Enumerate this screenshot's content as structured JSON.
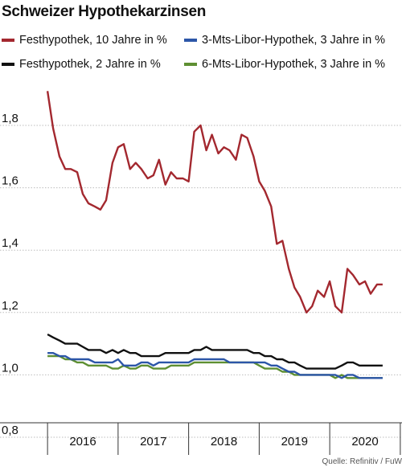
{
  "title": "Schweizer Hypothekarzinsen",
  "source": "Quelle: Refinitiv / FuW",
  "chart_data": {
    "type": "line",
    "title": "Schweizer Hypothekarzinsen",
    "xlabel": "",
    "ylabel": "",
    "ylim": [
      0.8,
      1.9
    ],
    "yticks": [
      0.8,
      1.0,
      1.2,
      1.4,
      1.6,
      1.8
    ],
    "ytick_labels": [
      "0,8",
      "1,0",
      "1,2",
      "1,4",
      "1,6",
      "1,8"
    ],
    "xlim": [
      2015.45,
      2020.4
    ],
    "xticks": [
      2016,
      2017,
      2018,
      2019,
      2020
    ],
    "xtick_labels": [
      "2016",
      "2017",
      "2018",
      "2019",
      "2020"
    ],
    "grid": "horizontal",
    "legend_position": "top",
    "series": [
      {
        "name": "Festhypothek, 10 Jahre in %",
        "color": "#a3282f",
        "x": [
          2015.5,
          2015.58,
          2015.67,
          2015.75,
          2015.83,
          2015.92,
          2016.0,
          2016.08,
          2016.17,
          2016.25,
          2016.33,
          2016.42,
          2016.5,
          2016.58,
          2016.67,
          2016.75,
          2016.83,
          2016.92,
          2017.0,
          2017.08,
          2017.17,
          2017.25,
          2017.33,
          2017.42,
          2017.5,
          2017.58,
          2017.67,
          2017.75,
          2017.83,
          2017.92,
          2018.0,
          2018.08,
          2018.17,
          2018.25,
          2018.33,
          2018.42,
          2018.5,
          2018.58,
          2018.67,
          2018.75,
          2018.83,
          2018.92,
          2019.0,
          2019.08,
          2019.17,
          2019.25,
          2019.33,
          2019.42,
          2019.5,
          2019.58,
          2019.67,
          2019.75,
          2019.83,
          2019.92,
          2020.0,
          2020.08,
          2020.17,
          2020.25
        ],
        "values": [
          1.91,
          1.79,
          1.7,
          1.66,
          1.66,
          1.65,
          1.58,
          1.55,
          1.54,
          1.53,
          1.56,
          1.68,
          1.73,
          1.74,
          1.66,
          1.68,
          1.66,
          1.63,
          1.64,
          1.69,
          1.61,
          1.65,
          1.63,
          1.63,
          1.62,
          1.78,
          1.8,
          1.72,
          1.77,
          1.71,
          1.73,
          1.72,
          1.69,
          1.77,
          1.76,
          1.7,
          1.62,
          1.59,
          1.54,
          1.42,
          1.43,
          1.34,
          1.28,
          1.25,
          1.2,
          1.22,
          1.27,
          1.25,
          1.3,
          1.22,
          1.2,
          1.34,
          1.32,
          1.29,
          1.3,
          1.26,
          1.29,
          1.29
        ]
      },
      {
        "name": "Festhypothek, 2 Jahre in %",
        "color": "#111111",
        "x": [
          2015.5,
          2015.58,
          2015.67,
          2015.75,
          2015.83,
          2015.92,
          2016.0,
          2016.08,
          2016.17,
          2016.25,
          2016.33,
          2016.42,
          2016.5,
          2016.58,
          2016.67,
          2016.75,
          2016.83,
          2016.92,
          2017.0,
          2017.08,
          2017.17,
          2017.25,
          2017.33,
          2017.42,
          2017.5,
          2017.58,
          2017.67,
          2017.75,
          2017.83,
          2017.92,
          2018.0,
          2018.08,
          2018.17,
          2018.25,
          2018.33,
          2018.42,
          2018.5,
          2018.58,
          2018.67,
          2018.75,
          2018.83,
          2018.92,
          2019.0,
          2019.08,
          2019.17,
          2019.25,
          2019.33,
          2019.42,
          2019.5,
          2019.58,
          2019.67,
          2019.75,
          2019.83,
          2019.92,
          2020.0,
          2020.08,
          2020.17,
          2020.25
        ],
        "values": [
          1.13,
          1.12,
          1.11,
          1.1,
          1.1,
          1.1,
          1.09,
          1.08,
          1.08,
          1.08,
          1.07,
          1.08,
          1.07,
          1.08,
          1.07,
          1.07,
          1.06,
          1.06,
          1.06,
          1.06,
          1.07,
          1.07,
          1.07,
          1.07,
          1.07,
          1.08,
          1.08,
          1.09,
          1.08,
          1.08,
          1.08,
          1.08,
          1.08,
          1.08,
          1.08,
          1.07,
          1.07,
          1.06,
          1.06,
          1.05,
          1.05,
          1.04,
          1.04,
          1.03,
          1.02,
          1.02,
          1.02,
          1.02,
          1.02,
          1.02,
          1.03,
          1.04,
          1.04,
          1.03,
          1.03,
          1.03,
          1.03,
          1.03
        ]
      },
      {
        "name": "3-Mts-Libor-Hypothek, 3 Jahre in %",
        "color": "#2c56a8",
        "x": [
          2015.5,
          2015.58,
          2015.67,
          2015.75,
          2015.83,
          2015.92,
          2016.0,
          2016.08,
          2016.17,
          2016.25,
          2016.33,
          2016.42,
          2016.5,
          2016.58,
          2016.67,
          2016.75,
          2016.83,
          2016.92,
          2017.0,
          2017.08,
          2017.17,
          2017.25,
          2017.33,
          2017.42,
          2017.5,
          2017.58,
          2017.67,
          2017.75,
          2017.83,
          2017.92,
          2018.0,
          2018.08,
          2018.17,
          2018.25,
          2018.33,
          2018.42,
          2018.5,
          2018.58,
          2018.67,
          2018.75,
          2018.83,
          2018.92,
          2019.0,
          2019.08,
          2019.17,
          2019.25,
          2019.33,
          2019.42,
          2019.5,
          2019.58,
          2019.67,
          2019.75,
          2019.83,
          2019.92,
          2020.0,
          2020.08,
          2020.17,
          2020.25
        ],
        "values": [
          1.07,
          1.07,
          1.06,
          1.06,
          1.05,
          1.05,
          1.05,
          1.05,
          1.04,
          1.04,
          1.04,
          1.04,
          1.05,
          1.03,
          1.03,
          1.03,
          1.04,
          1.04,
          1.03,
          1.04,
          1.04,
          1.04,
          1.04,
          1.04,
          1.04,
          1.05,
          1.05,
          1.05,
          1.05,
          1.05,
          1.05,
          1.04,
          1.04,
          1.04,
          1.04,
          1.04,
          1.04,
          1.04,
          1.03,
          1.03,
          1.02,
          1.01,
          1.01,
          1.0,
          1.0,
          1.0,
          1.0,
          1.0,
          1.0,
          1.0,
          0.99,
          1.0,
          1.0,
          0.99,
          0.99,
          0.99,
          0.99,
          0.99
        ]
      },
      {
        "name": "6-Mts-Libor-Hypothek, 3 Jahre in %",
        "color": "#5e8f32",
        "x": [
          2015.5,
          2015.58,
          2015.67,
          2015.75,
          2015.83,
          2015.92,
          2016.0,
          2016.08,
          2016.17,
          2016.25,
          2016.33,
          2016.42,
          2016.5,
          2016.58,
          2016.67,
          2016.75,
          2016.83,
          2016.92,
          2017.0,
          2017.08,
          2017.17,
          2017.25,
          2017.33,
          2017.42,
          2017.5,
          2017.58,
          2017.67,
          2017.75,
          2017.83,
          2017.92,
          2018.0,
          2018.08,
          2018.17,
          2018.25,
          2018.33,
          2018.42,
          2018.5,
          2018.58,
          2018.67,
          2018.75,
          2018.83,
          2018.92,
          2019.0,
          2019.08,
          2019.17,
          2019.25,
          2019.33,
          2019.42,
          2019.5,
          2019.58,
          2019.67,
          2019.75,
          2019.83,
          2019.92,
          2020.0,
          2020.08,
          2020.17,
          2020.25
        ],
        "values": [
          1.06,
          1.06,
          1.06,
          1.05,
          1.05,
          1.04,
          1.04,
          1.03,
          1.03,
          1.03,
          1.03,
          1.02,
          1.02,
          1.03,
          1.02,
          1.02,
          1.03,
          1.03,
          1.02,
          1.02,
          1.02,
          1.03,
          1.03,
          1.03,
          1.03,
          1.04,
          1.04,
          1.04,
          1.04,
          1.04,
          1.04,
          1.04,
          1.04,
          1.04,
          1.04,
          1.04,
          1.03,
          1.02,
          1.02,
          1.02,
          1.01,
          1.01,
          1.0,
          1.0,
          1.0,
          1.0,
          1.0,
          1.0,
          1.0,
          0.99,
          1.0,
          0.99,
          0.99,
          0.99,
          0.99,
          0.99,
          0.99,
          0.99
        ]
      }
    ]
  }
}
